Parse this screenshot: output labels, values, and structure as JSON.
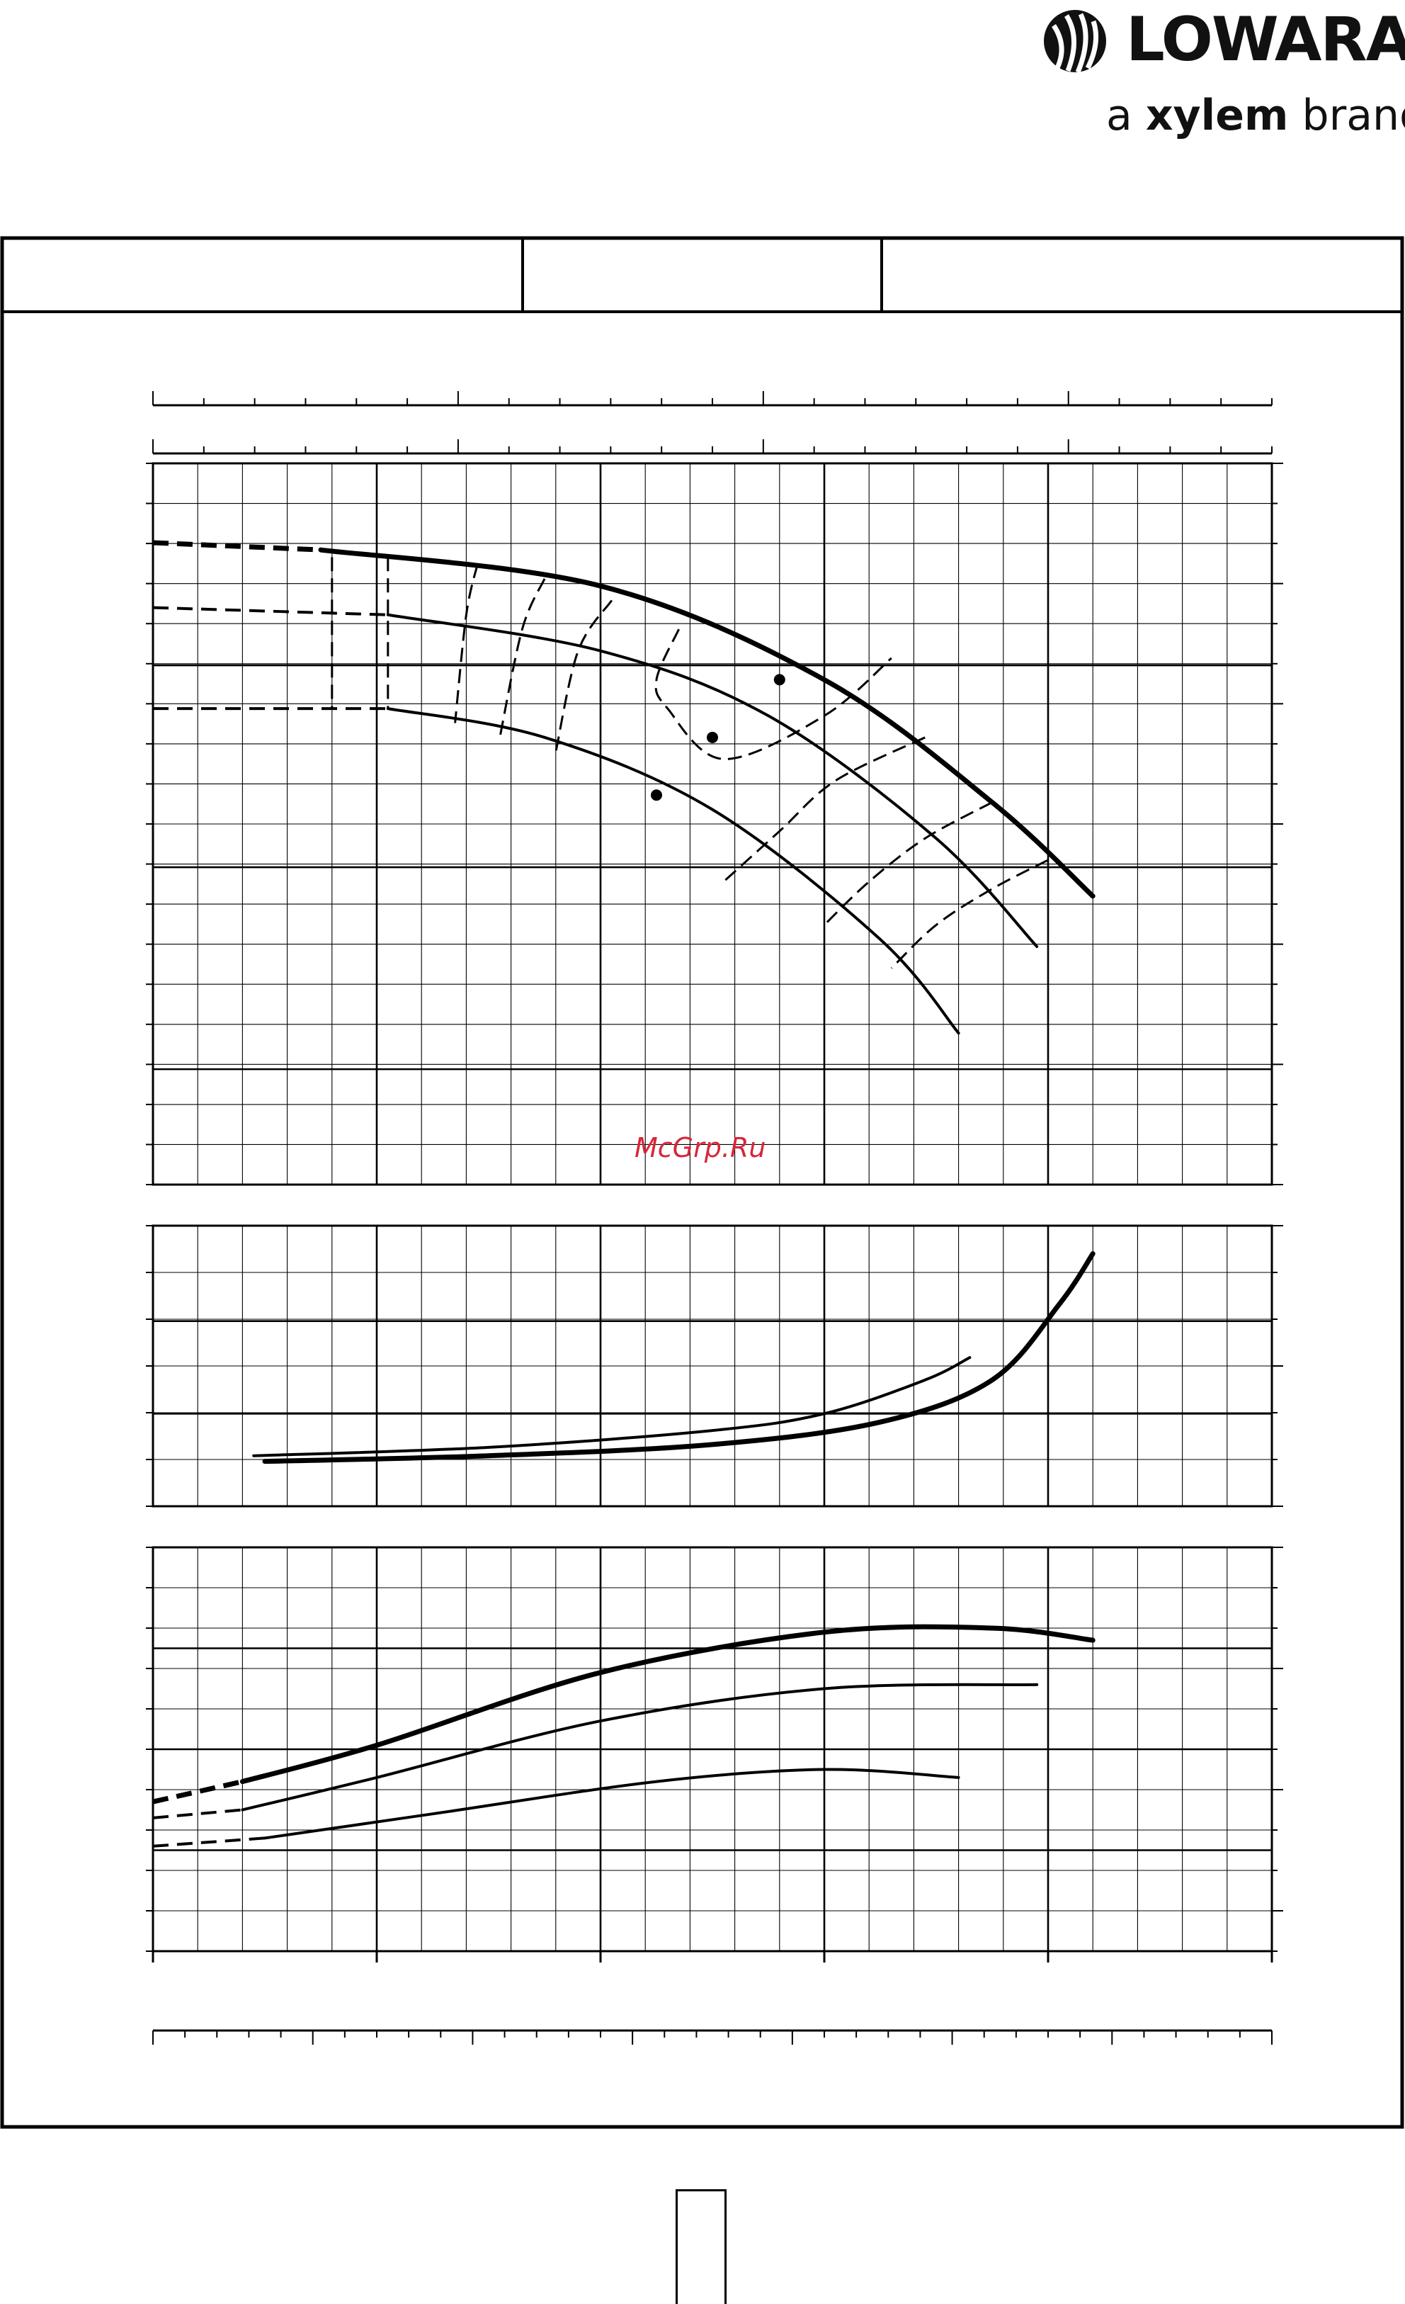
{
  "brand": {
    "name": "LOWARA",
    "tagline_prefix": "a ",
    "tagline_bold": "xylem",
    "tagline_suffix": " brand",
    "logo_icon": "lowara-drop-logo-icon"
  },
  "watermark": "McGrp.Ru",
  "colors": {
    "ink": "#000000",
    "watermark": "#d6263a",
    "background": "#ffffff"
  },
  "chart_data": [
    {
      "type": "line",
      "panel": "head",
      "xlim": [
        0,
        10
      ],
      "ylim": [
        0,
        10
      ],
      "series": [
        {
          "id": "max",
          "weight": "bold",
          "solid": [
            [
              1.5,
              8.8
            ],
            [
              4.0,
              8.3
            ],
            [
              6.0,
              7.0
            ],
            [
              7.5,
              5.3
            ],
            [
              8.4,
              4.0
            ]
          ],
          "dashed": [
            [
              0,
              8.9
            ],
            [
              1.5,
              8.8
            ]
          ]
        },
        {
          "id": "mid",
          "weight": "normal",
          "solid": [
            [
              2.1,
              7.9
            ],
            [
              4.0,
              7.4
            ],
            [
              5.5,
              6.5
            ],
            [
              7.0,
              4.8
            ],
            [
              7.9,
              3.3
            ]
          ],
          "dashed": [
            [
              0,
              8.0
            ],
            [
              2.1,
              7.9
            ]
          ]
        },
        {
          "id": "min",
          "weight": "normal",
          "solid": [
            [
              2.1,
              6.6
            ],
            [
              3.5,
              6.2
            ],
            [
              5.0,
              5.2
            ],
            [
              6.5,
              3.4
            ],
            [
              7.2,
              2.1
            ]
          ],
          "dashed": [
            [
              0,
              6.6
            ],
            [
              2.1,
              6.6
            ]
          ]
        }
      ],
      "iso_efficiency": [
        [
          [
            1.6,
            8.7
          ],
          [
            1.6,
            7.9
          ],
          [
            1.6,
            6.6
          ]
        ],
        [
          [
            2.1,
            8.7
          ],
          [
            2.1,
            7.9
          ],
          [
            2.1,
            6.6
          ]
        ],
        [
          [
            2.9,
            8.6
          ],
          [
            2.8,
            7.9
          ],
          [
            2.7,
            6.4
          ]
        ],
        [
          [
            3.5,
            8.4
          ],
          [
            3.3,
            7.7
          ],
          [
            3.1,
            6.2
          ]
        ],
        [
          [
            4.1,
            8.1
          ],
          [
            3.8,
            7.4
          ],
          [
            3.6,
            6.0
          ]
        ],
        [
          [
            4.7,
            7.7
          ],
          [
            4.5,
            7.0
          ],
          [
            4.6,
            6.6
          ],
          [
            5.1,
            5.9
          ],
          [
            6.0,
            6.5
          ],
          [
            6.6,
            7.3
          ]
        ],
        [
          [
            6.9,
            6.2
          ],
          [
            6.1,
            5.6
          ],
          [
            5.6,
            4.9
          ],
          [
            5.1,
            4.2
          ]
        ],
        [
          [
            7.5,
            5.3
          ],
          [
            6.9,
            4.8
          ],
          [
            6.4,
            4.2
          ],
          [
            6.0,
            3.6
          ]
        ],
        [
          [
            8.0,
            4.5
          ],
          [
            7.5,
            4.1
          ],
          [
            7.0,
            3.6
          ],
          [
            6.6,
            3.0
          ]
        ]
      ],
      "duty_points": [
        [
          5.6,
          7.0
        ],
        [
          5.0,
          6.2
        ],
        [
          4.5,
          5.4
        ]
      ]
    },
    {
      "type": "line",
      "panel": "npsh",
      "xlim": [
        0,
        10
      ],
      "ylim": [
        0,
        10
      ],
      "series": [
        {
          "id": "max",
          "weight": "bold",
          "solid": [
            [
              1.0,
              1.6
            ],
            [
              3.0,
              1.8
            ],
            [
              5.0,
              2.2
            ],
            [
              6.5,
              3.0
            ],
            [
              7.5,
              4.5
            ],
            [
              8.1,
              7.2
            ],
            [
              8.4,
              9.0
            ]
          ]
        },
        {
          "id": "mid",
          "weight": "normal",
          "solid": [
            [
              0.9,
              1.8
            ],
            [
              3.0,
              2.1
            ],
            [
              5.0,
              2.7
            ],
            [
              6.0,
              3.3
            ],
            [
              6.9,
              4.5
            ],
            [
              7.3,
              5.3
            ]
          ]
        }
      ]
    },
    {
      "type": "line",
      "panel": "power",
      "xlim": [
        0,
        10
      ],
      "ylim": [
        0,
        10
      ],
      "series": [
        {
          "id": "max",
          "weight": "bold",
          "solid": [
            [
              0.8,
              4.2
            ],
            [
              2.0,
              5.1
            ],
            [
              4.0,
              6.9
            ],
            [
              6.0,
              7.9
            ],
            [
              7.5,
              8.0
            ],
            [
              8.4,
              7.7
            ]
          ],
          "dashed": [
            [
              0,
              3.7
            ],
            [
              0.8,
              4.2
            ]
          ]
        },
        {
          "id": "mid",
          "weight": "normal",
          "solid": [
            [
              0.8,
              3.5
            ],
            [
              2.0,
              4.3
            ],
            [
              4.0,
              5.7
            ],
            [
              6.0,
              6.5
            ],
            [
              7.9,
              6.6
            ]
          ],
          "dashed": [
            [
              0,
              3.3
            ],
            [
              0.8,
              3.5
            ]
          ]
        },
        {
          "id": "min",
          "weight": "normal",
          "solid": [
            [
              1.0,
              2.8
            ],
            [
              2.5,
              3.4
            ],
            [
              4.5,
              4.2
            ],
            [
              6.0,
              4.5
            ],
            [
              7.2,
              4.3
            ]
          ],
          "dashed": [
            [
              0,
              2.6
            ],
            [
              1.0,
              2.8
            ]
          ]
        }
      ]
    }
  ]
}
